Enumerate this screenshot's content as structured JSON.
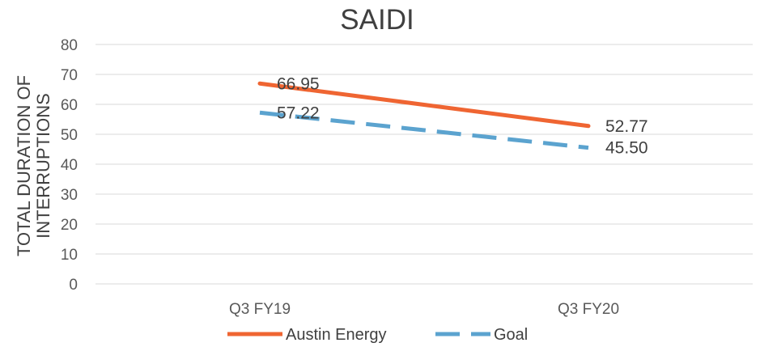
{
  "chart_data": {
    "type": "line",
    "title": "SAIDI",
    "ylabel_lines": [
      "TOTAL DURATION OF",
      "INTERRUPTIONS"
    ],
    "xlabel": "",
    "categories": [
      "Q3 FY19",
      "Q3 FY20"
    ],
    "ylim": [
      0,
      80
    ],
    "yticks": [
      0,
      10,
      20,
      30,
      40,
      50,
      60,
      70,
      80
    ],
    "grid": true,
    "legend_position": "bottom",
    "series": [
      {
        "name": "Austin Energy",
        "values": [
          66.95,
          52.77
        ],
        "labels": [
          "66.95",
          "52.77"
        ],
        "color": "#EF6532",
        "style": "solid"
      },
      {
        "name": "Goal",
        "values": [
          57.22,
          45.5
        ],
        "labels": [
          "57.22",
          "45.50"
        ],
        "color": "#5BA3CF",
        "style": "dashed"
      }
    ]
  }
}
